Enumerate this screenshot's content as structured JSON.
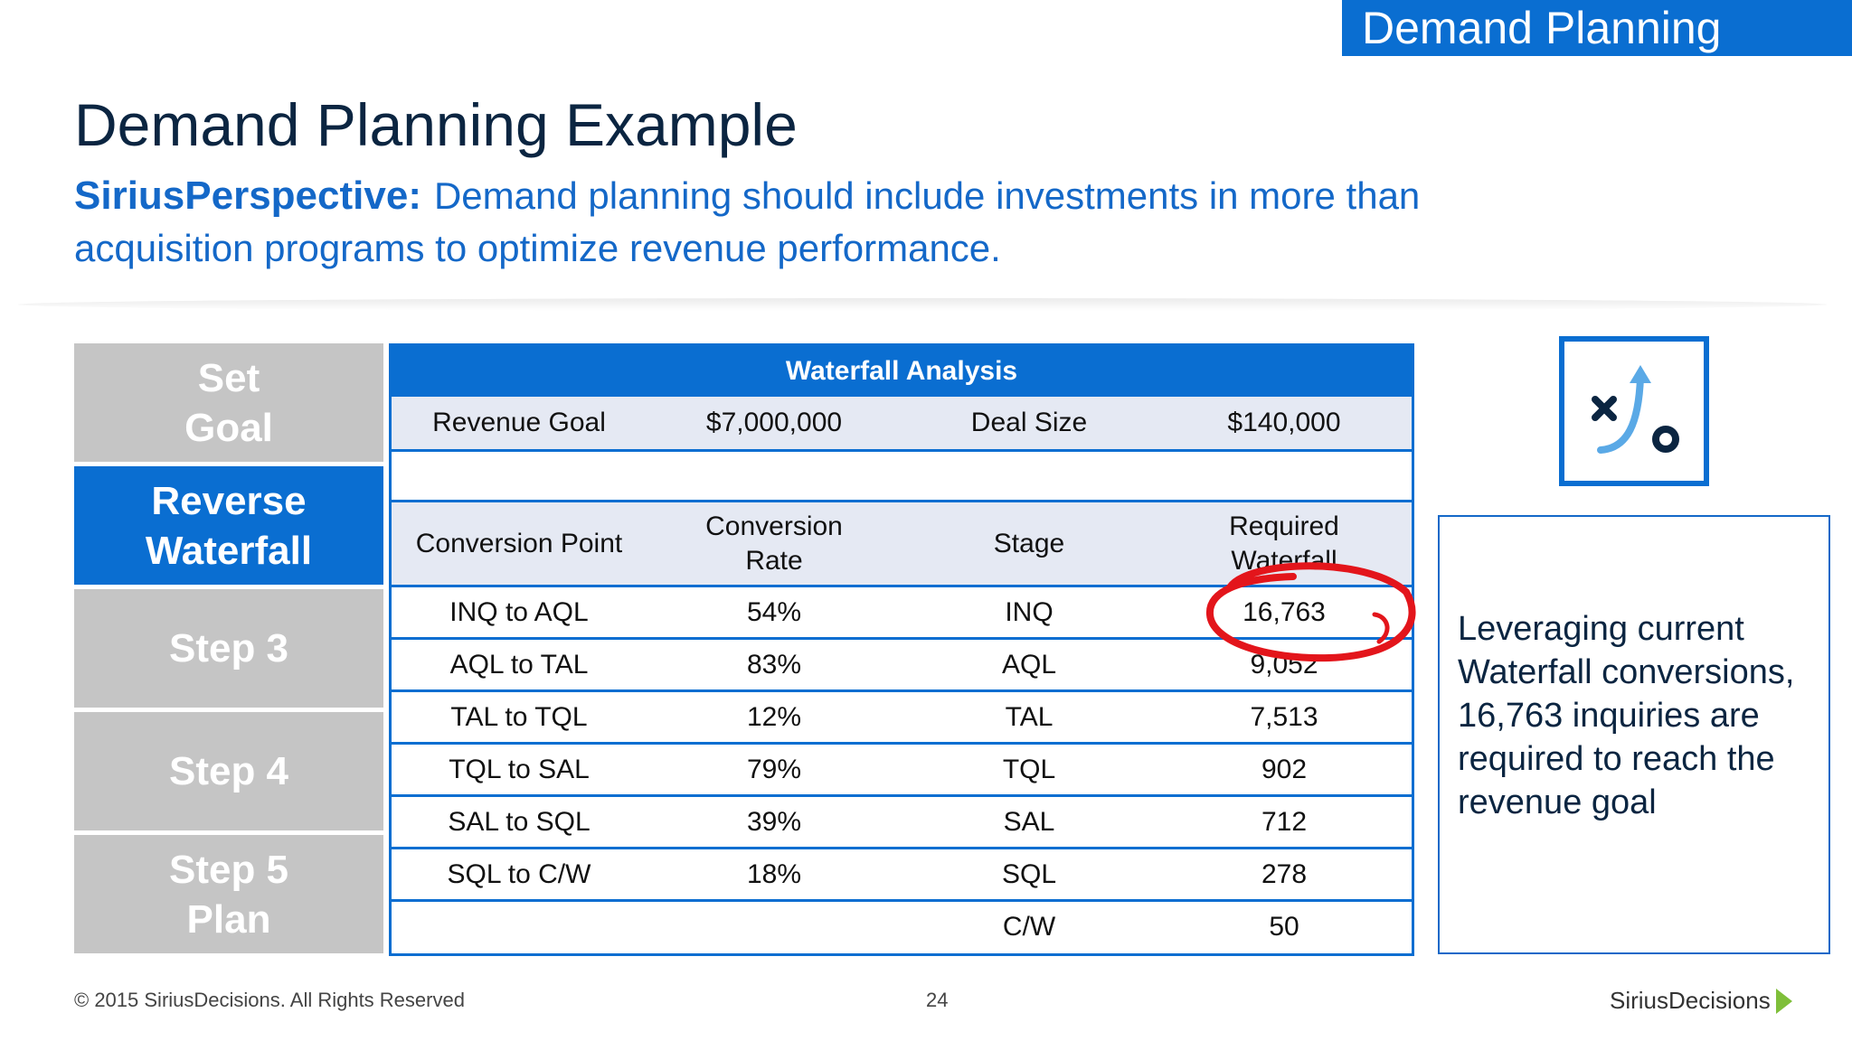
{
  "header": {
    "section_tag": "Demand Planning",
    "title": "Demand Planning Example",
    "perspective_label": "SiriusPerspective:",
    "perspective_text": "Demand planning should include investments in more than acquisition programs to optimize revenue performance."
  },
  "steps": [
    {
      "label": "Set\nGoal",
      "active": false
    },
    {
      "label": "Reverse\nWaterfall",
      "active": true
    },
    {
      "label": "Step 3",
      "active": false
    },
    {
      "label": "Step 4",
      "active": false
    },
    {
      "label": "Step 5\nPlan",
      "active": false
    }
  ],
  "waterfall": {
    "title": "Waterfall Analysis",
    "goal_row": [
      "Revenue Goal",
      "$7,000,000",
      "Deal Size",
      "$140,000"
    ],
    "columns": [
      "Conversion Point",
      "Conversion\nRate",
      "Stage",
      "Required\nWaterfall"
    ],
    "rows": [
      [
        "INQ to AQL",
        "54%",
        "INQ",
        "16,763"
      ],
      [
        "AQL to TAL",
        "83%",
        "AQL",
        "9,052"
      ],
      [
        "TAL to TQL",
        "12%",
        "TAL",
        "7,513"
      ],
      [
        "TQL to SAL",
        "79%",
        "TQL",
        "902"
      ],
      [
        "SAL to SQL",
        "39%",
        "SAL",
        "712"
      ],
      [
        "SQL to C/W",
        "18%",
        "SQL",
        "278"
      ],
      [
        "",
        "",
        "C/W",
        "50"
      ]
    ]
  },
  "icon": {
    "name": "strategy-play-icon",
    "accent": "#0a6ed1",
    "arrow": "#5aa9e6"
  },
  "note": "Leveraging current Waterfall conversions, 16,763 inquiries are required to reach the revenue goal",
  "footer": {
    "copyright": "© 2015 SiriusDecisions. All Rights Reserved",
    "page": "24",
    "logo": "SiriusDecisions"
  },
  "colors": {
    "brand_blue": "#0a6ed1",
    "step_gray": "#c5c5c5",
    "shaded_row": "#e5e9f3",
    "annotation_red": "#e3151b"
  }
}
